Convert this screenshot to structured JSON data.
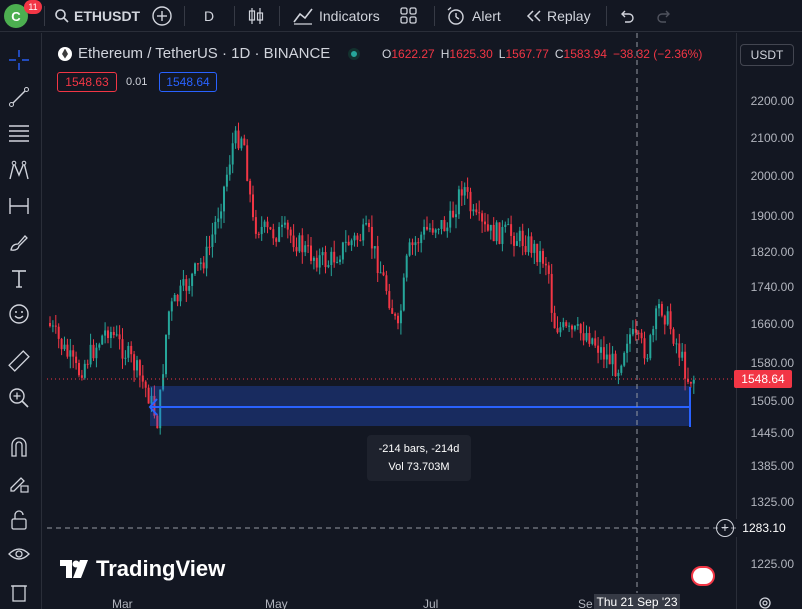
{
  "topbar": {
    "avatar_letter": "C",
    "notifications": "11",
    "symbol": "ETHUSDT",
    "interval": "D",
    "indicators_label": "Indicators",
    "alert_label": "Alert",
    "replay_label": "Replay"
  },
  "legend": {
    "title": "Ethereum / TetherUS · 1D · BINANCE",
    "ohlc": [
      {
        "key": "O",
        "value": "1622.27"
      },
      {
        "key": "H",
        "value": "1625.30"
      },
      {
        "key": "L",
        "value": "1567.77"
      },
      {
        "key": "C",
        "value": "1583.94"
      }
    ],
    "change": "−38.32 (−2.36%)",
    "currency_button": "USDT"
  },
  "trade": {
    "sell_price": "1548.63",
    "spread": "0.01",
    "buy_price": "1548.64"
  },
  "price_axis": {
    "ticks": [
      "2200.00",
      "2100.00",
      "2000.00",
      "1900.00",
      "1820.00",
      "1740.00",
      "1660.00",
      "1580.00",
      "1505.00",
      "1445.00",
      "1385.00",
      "1325.00",
      "1225.00"
    ],
    "current_price": "1548.64",
    "crosshair_price": "1283.10"
  },
  "time_axis": {
    "labels": [
      "Mar",
      "May",
      "Jul",
      "Se"
    ],
    "crosshair_date": "Thu 21 Sep '23"
  },
  "measure": {
    "line1": "-214 bars, -214d",
    "line2": "Vol 73.703M"
  },
  "branding": {
    "logo_text": "TradingView"
  },
  "colors": {
    "up": "#26a69a",
    "down": "#f23645",
    "accent": "#2962ff",
    "background": "#131722"
  }
}
